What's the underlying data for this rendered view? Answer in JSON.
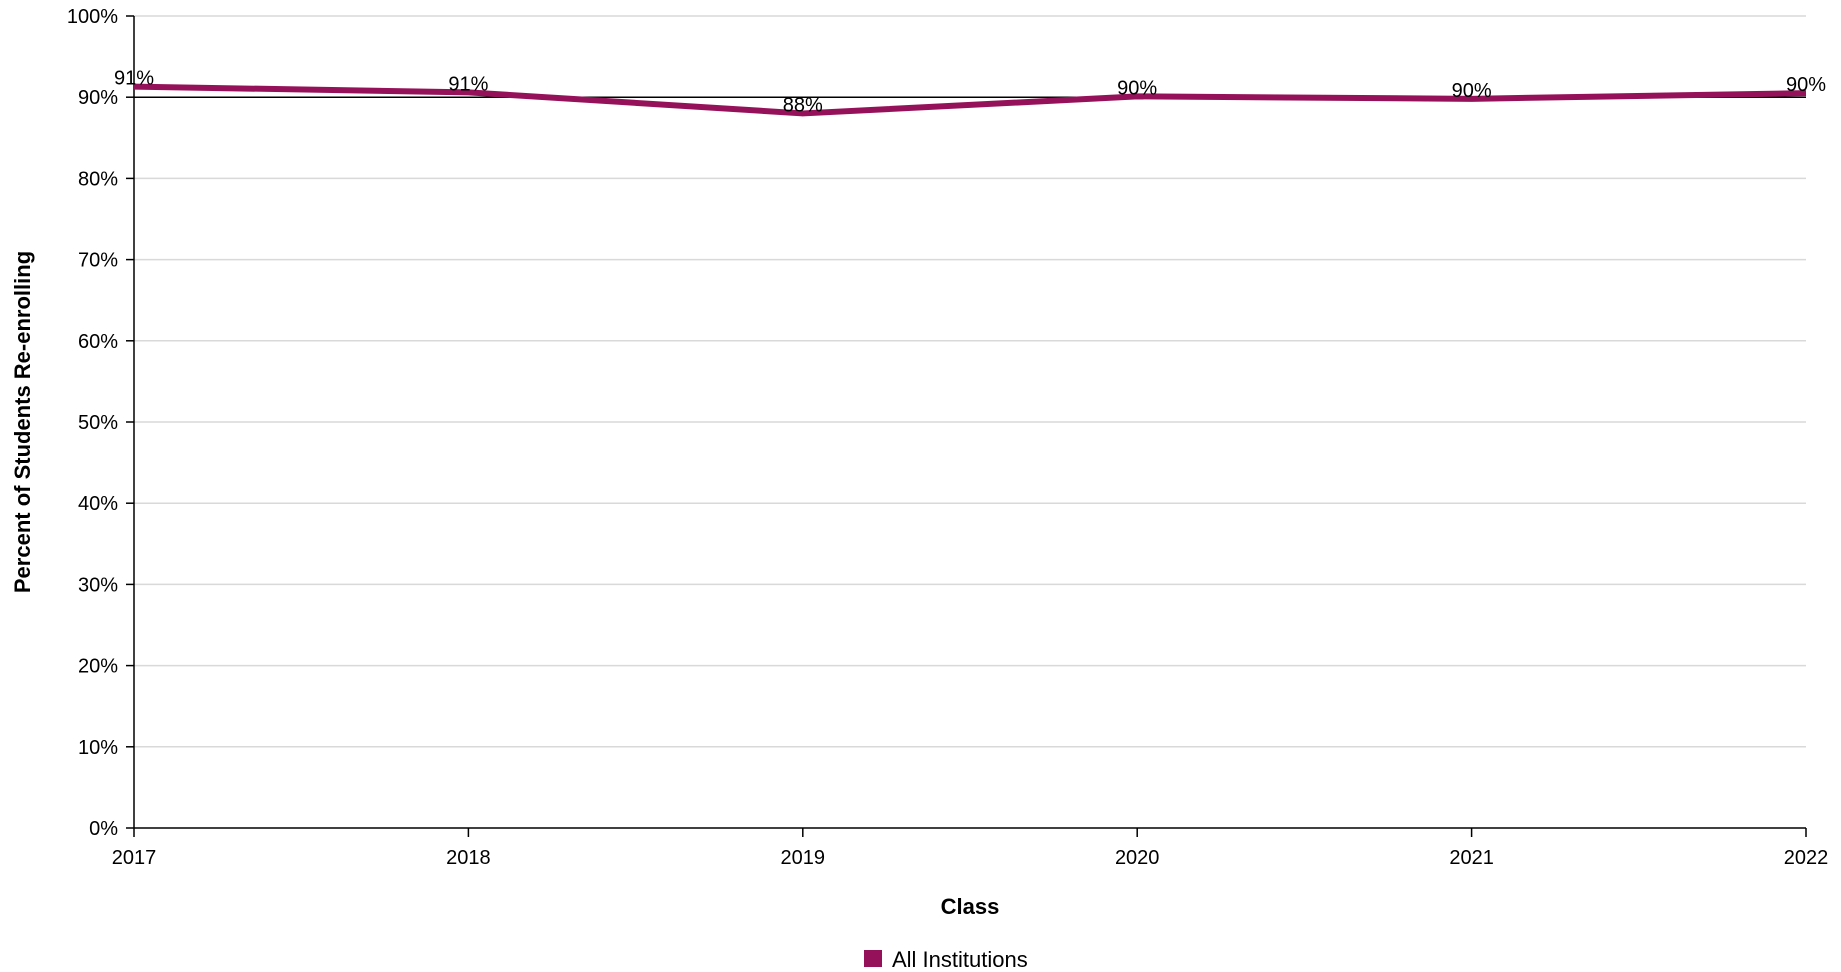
{
  "chart_data": {
    "type": "line",
    "xlabel": "Class",
    "ylabel": "Percent of Students Re-enrolling",
    "x": [
      "2017",
      "2018",
      "2019",
      "2020",
      "2021",
      "2022"
    ],
    "ylim": [
      0,
      100
    ],
    "y_ticks": [
      "0%",
      "10%",
      "20%",
      "30%",
      "40%",
      "50%",
      "60%",
      "70%",
      "80%",
      "90%",
      "100%"
    ],
    "reference_line": 90,
    "grid": true,
    "legend_position": "bottom-center",
    "series": [
      {
        "name": "All Institutions",
        "color": "#95125a",
        "values": [
          91.3,
          90.6,
          88.0,
          90.1,
          89.8,
          90.5
        ],
        "labels": [
          "91%",
          "91%",
          "88%",
          "90%",
          "90%",
          "90%"
        ]
      }
    ]
  }
}
